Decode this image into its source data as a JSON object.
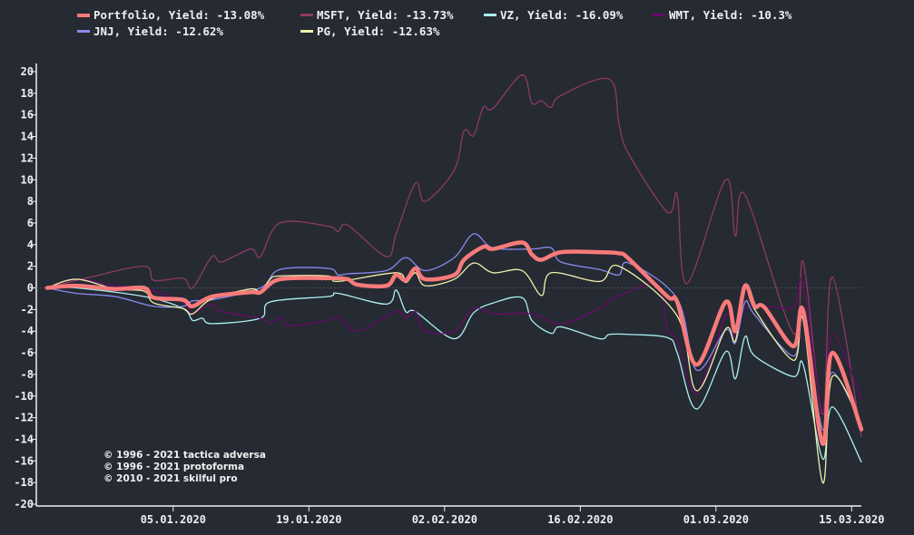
{
  "background": "#262a33",
  "chart_data": {
    "type": "line",
    "title": "",
    "xlabel": "",
    "ylabel": "",
    "ylim": [
      -20,
      20
    ],
    "xlim": [
      "23.12.2019",
      "16.03.2020"
    ],
    "y_ticks": [
      20,
      18,
      16,
      14,
      12,
      10,
      8,
      6,
      4,
      2,
      0,
      -2,
      -4,
      -6,
      -8,
      -10,
      -12,
      -14,
      -16,
      -18,
      -20
    ],
    "x_ticks": [
      "05.01.2020",
      "19.01.2020",
      "02.02.2020",
      "16.02.2020",
      "01.03.2020",
      "15.03.2020"
    ],
    "zero_line": true,
    "grid": false,
    "legend_position": "top",
    "series": [
      {
        "name": "MSFT",
        "label": "MSFT, Yield: -13.73%",
        "color": "#8e3a63",
        "width": 1.3,
        "points": [
          [
            "23.12.2019",
            0
          ],
          [
            "27.12.2019",
            0.9
          ],
          [
            "02.01.2020",
            2.0
          ],
          [
            "03.01.2020",
            0.7
          ],
          [
            "06.01.2020",
            0.9
          ],
          [
            "07.01.2020",
            0
          ],
          [
            "09.01.2020",
            2.9
          ],
          [
            "10.01.2020",
            2.4
          ],
          [
            "13.01.2020",
            3.6
          ],
          [
            "14.01.2020",
            2.9
          ],
          [
            "16.01.2020",
            6.0
          ],
          [
            "21.01.2020",
            5.7
          ],
          [
            "22.01.2020",
            5.2
          ],
          [
            "23.01.2020",
            5.8
          ],
          [
            "27.01.2020",
            2.9
          ],
          [
            "28.01.2020",
            5.0
          ],
          [
            "30.01.2020",
            9.7
          ],
          [
            "31.01.2020",
            8.0
          ],
          [
            "03.02.2020",
            10.9
          ],
          [
            "04.02.2020",
            14.5
          ],
          [
            "05.02.2020",
            14.1
          ],
          [
            "06.02.2020",
            16.7
          ],
          [
            "07.02.2020",
            16.6
          ],
          [
            "10.02.2020",
            19.7
          ],
          [
            "11.02.2020",
            17.1
          ],
          [
            "12.02.2020",
            17.3
          ],
          [
            "13.02.2020",
            16.7
          ],
          [
            "14.02.2020",
            17.8
          ],
          [
            "19.02.2020",
            19.3
          ],
          [
            "20.02.2020",
            15.1
          ],
          [
            "21.02.2020",
            12.4
          ],
          [
            "25.02.2020",
            7.0
          ],
          [
            "26.02.2020",
            8.6
          ],
          [
            "27.02.2020",
            0.4
          ],
          [
            "02.03.2020",
            10.0
          ],
          [
            "03.03.2020",
            4.8
          ],
          [
            "04.03.2020",
            8.6
          ],
          [
            "09.03.2020",
            -4.2
          ],
          [
            "10.03.2020",
            2.4
          ],
          [
            "12.03.2020",
            -11.7
          ],
          [
            "13.03.2020",
            1.0
          ],
          [
            "16.03.2020",
            -13.73
          ]
        ]
      },
      {
        "name": "VZ",
        "label": "VZ, Yield: -16.09%",
        "color": "#aaf0f0",
        "width": 1.3,
        "points": [
          [
            "23.12.2019",
            0
          ],
          [
            "26.12.2019",
            0
          ],
          [
            "02.01.2020",
            -0.8
          ],
          [
            "06.01.2020",
            -1.9
          ],
          [
            "07.01.2020",
            -3.0
          ],
          [
            "08.01.2020",
            -2.8
          ],
          [
            "09.01.2020",
            -3.3
          ],
          [
            "14.01.2020",
            -2.8
          ],
          [
            "15.01.2020",
            -1.3
          ],
          [
            "21.01.2020",
            -0.8
          ],
          [
            "22.01.2020",
            -0.5
          ],
          [
            "27.01.2020",
            -1.5
          ],
          [
            "28.01.2020",
            -0.2
          ],
          [
            "29.01.2020",
            -2.2
          ],
          [
            "30.01.2020",
            -2.2
          ],
          [
            "03.02.2020",
            -4.7
          ],
          [
            "05.02.2020",
            -2.3
          ],
          [
            "07.02.2020",
            -1.4
          ],
          [
            "10.02.2020",
            -0.9
          ],
          [
            "11.02.2020",
            -3.0
          ],
          [
            "13.02.2020",
            -4.2
          ],
          [
            "14.02.2020",
            -3.6
          ],
          [
            "18.02.2020",
            -4.7
          ],
          [
            "19.02.2020",
            -4.3
          ],
          [
            "21.02.2020",
            -4.3
          ],
          [
            "25.02.2020",
            -4.6
          ],
          [
            "26.02.2020",
            -6.0
          ],
          [
            "28.02.2020",
            -11.2
          ],
          [
            "02.03.2020",
            -5.9
          ],
          [
            "03.03.2020",
            -8.4
          ],
          [
            "04.03.2020",
            -4.5
          ],
          [
            "05.03.2020",
            -6.3
          ],
          [
            "09.03.2020",
            -8.2
          ],
          [
            "10.03.2020",
            -7.1
          ],
          [
            "12.03.2020",
            -15.8
          ],
          [
            "13.03.2020",
            -11.0
          ],
          [
            "16.03.2020",
            -16.09
          ]
        ]
      },
      {
        "name": "WMT",
        "label": "WMT, Yield: -10.3%",
        "color": "#6a0a6a",
        "width": 1.3,
        "points": [
          [
            "23.12.2019",
            0
          ],
          [
            "26.12.2019",
            0.8
          ],
          [
            "30.12.2019",
            0.2
          ],
          [
            "02.01.2020",
            0
          ],
          [
            "06.01.2020",
            -1.3
          ],
          [
            "07.01.2020",
            -2.3
          ],
          [
            "09.01.2020",
            -1.5
          ],
          [
            "10.01.2020",
            -2.2
          ],
          [
            "14.01.2020",
            -2.8
          ],
          [
            "15.01.2020",
            -3.3
          ],
          [
            "16.01.2020",
            -2.7
          ],
          [
            "17.01.2020",
            -3.5
          ],
          [
            "21.01.2020",
            -3.0
          ],
          [
            "22.01.2020",
            -2.6
          ],
          [
            "24.01.2020",
            -4.0
          ],
          [
            "28.01.2020",
            -2.2
          ],
          [
            "29.01.2020",
            -2.8
          ],
          [
            "30.01.2020",
            -2.2
          ],
          [
            "31.01.2020",
            -4.0
          ],
          [
            "03.02.2020",
            -4.0
          ],
          [
            "05.02.2020",
            -1.9
          ],
          [
            "07.02.2020",
            -2.4
          ],
          [
            "11.02.2020",
            -2.4
          ],
          [
            "14.02.2020",
            -3.3
          ],
          [
            "18.02.2020",
            -1.9
          ],
          [
            "19.02.2020",
            -1.2
          ],
          [
            "21.02.2020",
            -0.4
          ],
          [
            "24.02.2020",
            0.3
          ],
          [
            "25.02.2020",
            -3.8
          ],
          [
            "26.02.2020",
            -4.9
          ],
          [
            "28.02.2020",
            -9.7
          ],
          [
            "02.03.2020",
            -2.6
          ],
          [
            "03.03.2020",
            -4.5
          ],
          [
            "04.03.2020",
            -1.9
          ],
          [
            "06.03.2020",
            -1.7
          ],
          [
            "09.03.2020",
            -1.8
          ],
          [
            "10.03.2020",
            0.4
          ],
          [
            "12.03.2020",
            -11.5
          ],
          [
            "13.03.2020",
            -4.3
          ],
          [
            "16.03.2020",
            -10.3
          ]
        ]
      },
      {
        "name": "JNJ",
        "label": "JNJ, Yield: -12.62%",
        "color": "#8a8af0",
        "width": 1.3,
        "points": [
          [
            "23.12.2019",
            0
          ],
          [
            "26.12.2019",
            -0.5
          ],
          [
            "30.12.2019",
            -0.8
          ],
          [
            "03.01.2020",
            -1.7
          ],
          [
            "06.01.2020",
            -1.7
          ],
          [
            "07.01.2020",
            -1.2
          ],
          [
            "09.01.2020",
            -1.1
          ],
          [
            "14.01.2020",
            0
          ],
          [
            "16.01.2020",
            1.7
          ],
          [
            "21.01.2020",
            1.8
          ],
          [
            "22.01.2020",
            1.2
          ],
          [
            "23.01.2020",
            1.3
          ],
          [
            "27.01.2020",
            1.6
          ],
          [
            "29.01.2020",
            2.8
          ],
          [
            "31.01.2020",
            1.6
          ],
          [
            "03.02.2020",
            2.8
          ],
          [
            "05.02.2020",
            5.0
          ],
          [
            "07.02.2020",
            3.7
          ],
          [
            "11.02.2020",
            3.6
          ],
          [
            "13.02.2020",
            3.7
          ],
          [
            "14.02.2020",
            2.4
          ],
          [
            "18.02.2020",
            1.7
          ],
          [
            "20.02.2020",
            1.2
          ],
          [
            "21.02.2020",
            2.3
          ],
          [
            "26.02.2020",
            -1.0
          ],
          [
            "28.02.2020",
            -7.6
          ],
          [
            "02.03.2020",
            -3.9
          ],
          [
            "03.03.2020",
            -5.1
          ],
          [
            "04.03.2020",
            -1.3
          ],
          [
            "05.03.2020",
            -2.5
          ],
          [
            "09.03.2020",
            -6.3
          ],
          [
            "10.03.2020",
            -2.8
          ],
          [
            "12.03.2020",
            -13.1
          ],
          [
            "13.03.2020",
            -7.8
          ],
          [
            "16.03.2020",
            -12.62
          ]
        ]
      },
      {
        "name": "PG",
        "label": "PG, Yield: -12.63%",
        "color": "#f0f0aa",
        "width": 1.3,
        "points": [
          [
            "23.12.2019",
            0
          ],
          [
            "26.12.2019",
            0.8
          ],
          [
            "30.12.2019",
            -0.1
          ],
          [
            "02.01.2020",
            -0.3
          ],
          [
            "03.01.2020",
            -1.4
          ],
          [
            "06.01.2020",
            -1.9
          ],
          [
            "07.01.2020",
            -2.4
          ],
          [
            "09.01.2020",
            -1.0
          ],
          [
            "13.01.2020",
            -0.1
          ],
          [
            "14.01.2020",
            -0.4
          ],
          [
            "15.01.2020",
            0.8
          ],
          [
            "16.01.2020",
            1.1
          ],
          [
            "21.01.2020",
            1.1
          ],
          [
            "22.01.2020",
            0.6
          ],
          [
            "28.01.2020",
            1.4
          ],
          [
            "29.01.2020",
            0.5
          ],
          [
            "30.01.2020",
            1.4
          ],
          [
            "31.01.2020",
            0.2
          ],
          [
            "03.02.2020",
            0.8
          ],
          [
            "05.02.2020",
            2.3
          ],
          [
            "07.02.2020",
            1.4
          ],
          [
            "10.02.2020",
            1.6
          ],
          [
            "12.02.2020",
            -0.7
          ],
          [
            "13.02.2020",
            1.4
          ],
          [
            "18.02.2020",
            0.6
          ],
          [
            "20.02.2020",
            2.0
          ],
          [
            "26.02.2020",
            -2.6
          ],
          [
            "28.02.2020",
            -9.5
          ],
          [
            "02.03.2020",
            -3.8
          ],
          [
            "03.03.2020",
            -4.9
          ],
          [
            "04.03.2020",
            0
          ],
          [
            "05.03.2020",
            -2.0
          ],
          [
            "09.03.2020",
            -6.7
          ],
          [
            "10.03.2020",
            -3.0
          ],
          [
            "12.03.2020",
            -18.0
          ],
          [
            "13.03.2020",
            -8.2
          ],
          [
            "16.03.2020",
            -12.63
          ]
        ]
      },
      {
        "name": "Portfolio",
        "label": "Portfolio, Yield: -13.08%",
        "color": "#f87a7a",
        "width": 4.5,
        "points": [
          [
            "23.12.2019",
            0
          ],
          [
            "26.12.2019",
            0.2
          ],
          [
            "30.12.2019",
            -0.1
          ],
          [
            "02.01.2020",
            0
          ],
          [
            "03.01.2020",
            -0.9
          ],
          [
            "06.01.2020",
            -1.1
          ],
          [
            "07.01.2020",
            -1.7
          ],
          [
            "09.01.2020",
            -0.8
          ],
          [
            "13.01.2020",
            -0.4
          ],
          [
            "14.01.2020",
            -0.4
          ],
          [
            "16.01.2020",
            0.8
          ],
          [
            "21.01.2020",
            0.9
          ],
          [
            "23.01.2020",
            0.8
          ],
          [
            "24.01.2020",
            0.3
          ],
          [
            "27.01.2020",
            0.2
          ],
          [
            "28.01.2020",
            1.2
          ],
          [
            "29.01.2020",
            0.7
          ],
          [
            "30.01.2020",
            1.8
          ],
          [
            "31.01.2020",
            0.8
          ],
          [
            "03.02.2020",
            1.2
          ],
          [
            "04.02.2020",
            2.6
          ],
          [
            "06.02.2020",
            3.8
          ],
          [
            "07.02.2020",
            3.6
          ],
          [
            "10.02.2020",
            4.2
          ],
          [
            "11.02.2020",
            3.1
          ],
          [
            "12.02.2020",
            2.6
          ],
          [
            "14.02.2020",
            3.3
          ],
          [
            "18.02.2020",
            3.3
          ],
          [
            "20.02.2020",
            3.2
          ],
          [
            "21.02.2020",
            2.7
          ],
          [
            "25.02.2020",
            -0.8
          ],
          [
            "26.02.2020",
            -1.3
          ],
          [
            "28.02.2020",
            -7.1
          ],
          [
            "02.03.2020",
            -1.3
          ],
          [
            "03.03.2020",
            -4.0
          ],
          [
            "04.03.2020",
            0.2
          ],
          [
            "05.03.2020",
            -1.7
          ],
          [
            "06.03.2020",
            -1.8
          ],
          [
            "09.03.2020",
            -5.4
          ],
          [
            "10.03.2020",
            -2.1
          ],
          [
            "12.03.2020",
            -14.4
          ],
          [
            "13.03.2020",
            -6.0
          ],
          [
            "16.03.2020",
            -13.08
          ]
        ]
      }
    ]
  },
  "legend": {
    "rows": [
      [
        {
          "label": "Portfolio, Yield: -13.08%",
          "color": "#f87a7a"
        },
        {
          "label": "MSFT, Yield: -13.73%",
          "color": "#8e3a63"
        },
        {
          "label": "VZ, Yield: -16.09%",
          "color": "#aaf0f0"
        },
        {
          "label": "WMT, Yield: -10.3%",
          "color": "#6a0a6a"
        }
      ],
      [
        {
          "label": "JNJ, Yield: -12.62%",
          "color": "#8a8af0"
        },
        {
          "label": "PG, Yield: -12.63%",
          "color": "#f0f0aa"
        }
      ]
    ]
  },
  "copyright": [
    "© 1996 - 2021 tactica adversa",
    "© 1996 - 2021 protoforma",
    "© 2010 - 2021 skilful pro"
  ]
}
